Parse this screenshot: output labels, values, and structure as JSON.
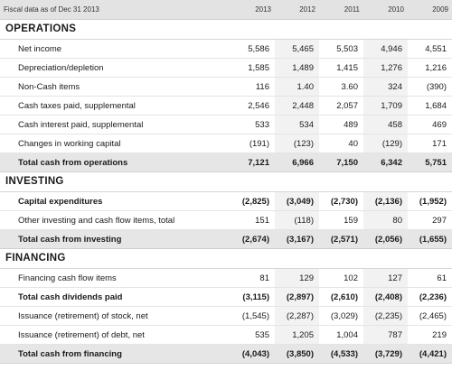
{
  "header": {
    "title": "Fiscal data as of Dec 31 2013",
    "years": [
      "2013",
      "2012",
      "2011",
      "2010",
      "2009"
    ]
  },
  "sections": [
    {
      "title": "OPERATIONS",
      "rows": [
        {
          "label": "Net income",
          "values": [
            "5,586",
            "5,465",
            "5,503",
            "4,946",
            "4,551"
          ],
          "style": "normal"
        },
        {
          "label": "Depreciation/depletion",
          "values": [
            "1,585",
            "1,489",
            "1,415",
            "1,276",
            "1,216"
          ],
          "style": "normal"
        },
        {
          "label": "Non-Cash items",
          "values": [
            "116",
            "1.40",
            "3.60",
            "324",
            "(390)"
          ],
          "style": "normal"
        },
        {
          "label": "Cash taxes paid, supplemental",
          "values": [
            "2,546",
            "2,448",
            "2,057",
            "1,709",
            "1,684"
          ],
          "style": "normal"
        },
        {
          "label": "Cash interest paid, supplemental",
          "values": [
            "533",
            "534",
            "489",
            "458",
            "469"
          ],
          "style": "normal"
        },
        {
          "label": "Changes in working capital",
          "values": [
            "(191)",
            "(123)",
            "40",
            "(129)",
            "171"
          ],
          "style": "normal"
        },
        {
          "label": "Total cash from operations",
          "values": [
            "7,121",
            "6,966",
            "7,150",
            "6,342",
            "5,751"
          ],
          "style": "total"
        }
      ]
    },
    {
      "title": "INVESTING",
      "rows": [
        {
          "label": "Capital expenditures",
          "values": [
            "(2,825)",
            "(3,049)",
            "(2,730)",
            "(2,136)",
            "(1,952)"
          ],
          "style": "bold"
        },
        {
          "label": "Other investing and cash flow items, total",
          "values": [
            "151",
            "(118)",
            "159",
            "80",
            "297"
          ],
          "style": "normal"
        },
        {
          "label": "Total cash from investing",
          "values": [
            "(2,674)",
            "(3,167)",
            "(2,571)",
            "(2,056)",
            "(1,655)"
          ],
          "style": "total"
        }
      ]
    },
    {
      "title": "FINANCING",
      "rows": [
        {
          "label": "Financing cash flow items",
          "values": [
            "81",
            "129",
            "102",
            "127",
            "61"
          ],
          "style": "normal"
        },
        {
          "label": "Total cash dividends paid",
          "values": [
            "(3,115)",
            "(2,897)",
            "(2,610)",
            "(2,408)",
            "(2,236)"
          ],
          "style": "bold"
        },
        {
          "label": "Issuance (retirement) of stock, net",
          "values": [
            "(1,545)",
            "(2,287)",
            "(3,029)",
            "(2,235)",
            "(2,465)"
          ],
          "style": "normal"
        },
        {
          "label": "Issuance (retirement) of debt, net",
          "values": [
            "535",
            "1,205",
            "1,004",
            "787",
            "219"
          ],
          "style": "normal"
        },
        {
          "label": "Total cash from financing",
          "values": [
            "(4,043)",
            "(3,850)",
            "(4,533)",
            "(3,729)",
            "(4,421)"
          ],
          "style": "total"
        }
      ]
    }
  ]
}
